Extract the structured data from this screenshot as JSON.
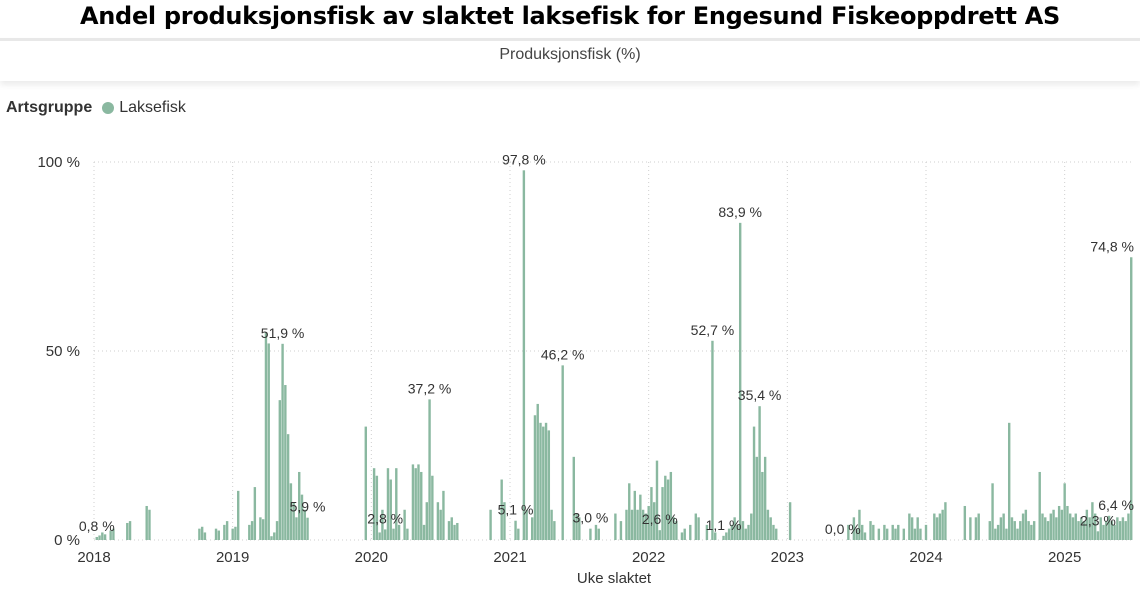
{
  "title": "Andel produksjonsfisk av slaktet laksefisk for Engesund Fiskeoppdrett AS",
  "subtitle": "Produksjonsfisk (%)",
  "legend": {
    "title": "Artsgruppe",
    "item": "Laksefisk"
  },
  "colors": {
    "bar": "#8ab8a0",
    "legend_dot": "#8ab8a0",
    "grid": "#cfcfcf"
  },
  "chart_data": {
    "type": "bar",
    "title": "Produksjonsfisk (%)",
    "xlabel": "Uke slaktet",
    "ylabel": "",
    "ylim": [
      0,
      100
    ],
    "y_ticks": [
      0,
      50,
      100
    ],
    "y_tick_labels": [
      "0 %",
      "50 %",
      "100 %"
    ],
    "x_range": [
      2018,
      2025.5
    ],
    "x_ticks": [
      2018,
      2019,
      2020,
      2021,
      2022,
      2023,
      2024,
      2025
    ],
    "x_tick_labels": [
      "2018",
      "2019",
      "2020",
      "2021",
      "2022",
      "2023",
      "2024",
      "2025"
    ],
    "series": [
      {
        "name": "Laksefisk",
        "points": [
          {
            "x": 2018.02,
            "y": 0.8
          },
          {
            "x": 2018.04,
            "y": 1.2
          },
          {
            "x": 2018.06,
            "y": 2.0
          },
          {
            "x": 2018.08,
            "y": 1.5
          },
          {
            "x": 2018.12,
            "y": 2.5
          },
          {
            "x": 2018.14,
            "y": 3.0
          },
          {
            "x": 2018.24,
            "y": 4.5
          },
          {
            "x": 2018.26,
            "y": 5.0
          },
          {
            "x": 2018.38,
            "y": 9.0
          },
          {
            "x": 2018.4,
            "y": 8.0
          },
          {
            "x": 2018.76,
            "y": 3.0
          },
          {
            "x": 2018.78,
            "y": 3.5
          },
          {
            "x": 2018.8,
            "y": 2.0
          },
          {
            "x": 2018.88,
            "y": 3.0
          },
          {
            "x": 2018.9,
            "y": 2.5
          },
          {
            "x": 2018.94,
            "y": 4.0
          },
          {
            "x": 2018.96,
            "y": 5.0
          },
          {
            "x": 2019.0,
            "y": 3.0
          },
          {
            "x": 2019.02,
            "y": 3.5
          },
          {
            "x": 2019.04,
            "y": 13.0
          },
          {
            "x": 2019.12,
            "y": 4.0
          },
          {
            "x": 2019.14,
            "y": 5.0
          },
          {
            "x": 2019.16,
            "y": 14.0
          },
          {
            "x": 2019.2,
            "y": 6.0
          },
          {
            "x": 2019.22,
            "y": 5.5
          },
          {
            "x": 2019.24,
            "y": 55.0
          },
          {
            "x": 2019.26,
            "y": 52.0
          },
          {
            "x": 2019.28,
            "y": 1.0
          },
          {
            "x": 2019.3,
            "y": 2.0
          },
          {
            "x": 2019.32,
            "y": 5.0
          },
          {
            "x": 2019.34,
            "y": 37.0
          },
          {
            "x": 2019.36,
            "y": 51.9
          },
          {
            "x": 2019.38,
            "y": 41.0
          },
          {
            "x": 2019.4,
            "y": 28.0
          },
          {
            "x": 2019.42,
            "y": 15.0
          },
          {
            "x": 2019.44,
            "y": 10.0
          },
          {
            "x": 2019.46,
            "y": 6.0
          },
          {
            "x": 2019.48,
            "y": 18.0
          },
          {
            "x": 2019.5,
            "y": 12.0
          },
          {
            "x": 2019.52,
            "y": 8.0
          },
          {
            "x": 2019.54,
            "y": 5.9
          },
          {
            "x": 2019.96,
            "y": 30.0
          },
          {
            "x": 2020.02,
            "y": 19.0
          },
          {
            "x": 2020.04,
            "y": 17.0
          },
          {
            "x": 2020.06,
            "y": 2.0
          },
          {
            "x": 2020.08,
            "y": 8.0
          },
          {
            "x": 2020.1,
            "y": 2.8
          },
          {
            "x": 2020.12,
            "y": 19.0
          },
          {
            "x": 2020.14,
            "y": 16.0
          },
          {
            "x": 2020.16,
            "y": 3.0
          },
          {
            "x": 2020.18,
            "y": 19.0
          },
          {
            "x": 2020.2,
            "y": 4.0
          },
          {
            "x": 2020.24,
            "y": 8.0
          },
          {
            "x": 2020.26,
            "y": 3.0
          },
          {
            "x": 2020.3,
            "y": 20.0
          },
          {
            "x": 2020.32,
            "y": 19.0
          },
          {
            "x": 2020.34,
            "y": 20.0
          },
          {
            "x": 2020.36,
            "y": 18.0
          },
          {
            "x": 2020.38,
            "y": 4.0
          },
          {
            "x": 2020.4,
            "y": 10.0
          },
          {
            "x": 2020.42,
            "y": 37.2
          },
          {
            "x": 2020.44,
            "y": 17.0
          },
          {
            "x": 2020.48,
            "y": 10.0
          },
          {
            "x": 2020.5,
            "y": 8.0
          },
          {
            "x": 2020.52,
            "y": 13.0
          },
          {
            "x": 2020.56,
            "y": 5.0
          },
          {
            "x": 2020.58,
            "y": 6.0
          },
          {
            "x": 2020.6,
            "y": 4.0
          },
          {
            "x": 2020.62,
            "y": 4.5
          },
          {
            "x": 2020.86,
            "y": 8.0
          },
          {
            "x": 2020.94,
            "y": 16.0
          },
          {
            "x": 2020.96,
            "y": 10.0
          },
          {
            "x": 2021.04,
            "y": 5.1
          },
          {
            "x": 2021.06,
            "y": 3.0
          },
          {
            "x": 2021.1,
            "y": 97.8
          },
          {
            "x": 2021.12,
            "y": 8.0
          },
          {
            "x": 2021.16,
            "y": 6.0
          },
          {
            "x": 2021.18,
            "y": 33.0
          },
          {
            "x": 2021.2,
            "y": 36.0
          },
          {
            "x": 2021.22,
            "y": 31.0
          },
          {
            "x": 2021.24,
            "y": 30.0
          },
          {
            "x": 2021.26,
            "y": 31.0
          },
          {
            "x": 2021.28,
            "y": 29.0
          },
          {
            "x": 2021.3,
            "y": 8.0
          },
          {
            "x": 2021.32,
            "y": 5.0
          },
          {
            "x": 2021.38,
            "y": 46.2
          },
          {
            "x": 2021.46,
            "y": 22.0
          },
          {
            "x": 2021.48,
            "y": 7.0
          },
          {
            "x": 2021.5,
            "y": 6.0
          },
          {
            "x": 2021.58,
            "y": 3.0
          },
          {
            "x": 2021.62,
            "y": 4.0
          },
          {
            "x": 2021.64,
            "y": 3.0
          },
          {
            "x": 2021.76,
            "y": 7.0
          },
          {
            "x": 2021.8,
            "y": 5.0
          },
          {
            "x": 2021.84,
            "y": 8.0
          },
          {
            "x": 2021.86,
            "y": 15.0
          },
          {
            "x": 2021.88,
            "y": 8.0
          },
          {
            "x": 2021.9,
            "y": 13.0
          },
          {
            "x": 2021.92,
            "y": 8.0
          },
          {
            "x": 2021.94,
            "y": 12.0
          },
          {
            "x": 2021.96,
            "y": 8.0
          },
          {
            "x": 2021.98,
            "y": 7.0
          },
          {
            "x": 2022.0,
            "y": 9.0
          },
          {
            "x": 2022.02,
            "y": 14.0
          },
          {
            "x": 2022.04,
            "y": 10.0
          },
          {
            "x": 2022.06,
            "y": 21.0
          },
          {
            "x": 2022.08,
            "y": 2.6
          },
          {
            "x": 2022.1,
            "y": 14.0
          },
          {
            "x": 2022.12,
            "y": 17.0
          },
          {
            "x": 2022.14,
            "y": 16.0
          },
          {
            "x": 2022.16,
            "y": 18.0
          },
          {
            "x": 2022.18,
            "y": 6.0
          },
          {
            "x": 2022.2,
            "y": 5.0
          },
          {
            "x": 2022.24,
            "y": 2.0
          },
          {
            "x": 2022.26,
            "y": 3.0
          },
          {
            "x": 2022.3,
            "y": 4.0
          },
          {
            "x": 2022.34,
            "y": 7.0
          },
          {
            "x": 2022.36,
            "y": 6.0
          },
          {
            "x": 2022.42,
            "y": 4.0
          },
          {
            "x": 2022.46,
            "y": 52.7
          },
          {
            "x": 2022.48,
            "y": 2.0
          },
          {
            "x": 2022.54,
            "y": 1.1
          },
          {
            "x": 2022.56,
            "y": 2.0
          },
          {
            "x": 2022.58,
            "y": 3.0
          },
          {
            "x": 2022.6,
            "y": 4.0
          },
          {
            "x": 2022.62,
            "y": 6.0
          },
          {
            "x": 2022.64,
            "y": 4.0
          },
          {
            "x": 2022.66,
            "y": 83.9
          },
          {
            "x": 2022.68,
            "y": 5.0
          },
          {
            "x": 2022.7,
            "y": 3.0
          },
          {
            "x": 2022.72,
            "y": 4.0
          },
          {
            "x": 2022.74,
            "y": 7.0
          },
          {
            "x": 2022.76,
            "y": 30.0
          },
          {
            "x": 2022.78,
            "y": 22.0
          },
          {
            "x": 2022.8,
            "y": 35.4
          },
          {
            "x": 2022.82,
            "y": 18.0
          },
          {
            "x": 2022.84,
            "y": 22.0
          },
          {
            "x": 2022.86,
            "y": 8.0
          },
          {
            "x": 2022.88,
            "y": 6.0
          },
          {
            "x": 2022.9,
            "y": 4.0
          },
          {
            "x": 2022.92,
            "y": 3.0
          },
          {
            "x": 2023.02,
            "y": 10.0
          },
          {
            "x": 2023.4,
            "y": 0.0
          },
          {
            "x": 2023.44,
            "y": 4.0
          },
          {
            "x": 2023.48,
            "y": 6.0
          },
          {
            "x": 2023.5,
            "y": 3.0
          },
          {
            "x": 2023.52,
            "y": 8.0
          },
          {
            "x": 2023.54,
            "y": 4.0
          },
          {
            "x": 2023.56,
            "y": 2.0
          },
          {
            "x": 2023.6,
            "y": 5.0
          },
          {
            "x": 2023.62,
            "y": 4.0
          },
          {
            "x": 2023.66,
            "y": 3.0
          },
          {
            "x": 2023.7,
            "y": 4.0
          },
          {
            "x": 2023.72,
            "y": 3.0
          },
          {
            "x": 2023.76,
            "y": 4.0
          },
          {
            "x": 2023.78,
            "y": 3.0
          },
          {
            "x": 2023.8,
            "y": 4.0
          },
          {
            "x": 2023.84,
            "y": 3.0
          },
          {
            "x": 2023.88,
            "y": 7.0
          },
          {
            "x": 2023.9,
            "y": 6.0
          },
          {
            "x": 2023.92,
            "y": 3.0
          },
          {
            "x": 2023.94,
            "y": 6.0
          },
          {
            "x": 2023.96,
            "y": 3.0
          },
          {
            "x": 2024.0,
            "y": 4.0
          },
          {
            "x": 2024.06,
            "y": 7.0
          },
          {
            "x": 2024.08,
            "y": 6.0
          },
          {
            "x": 2024.1,
            "y": 7.0
          },
          {
            "x": 2024.12,
            "y": 8.0
          },
          {
            "x": 2024.14,
            "y": 10.0
          },
          {
            "x": 2024.28,
            "y": 9.0
          },
          {
            "x": 2024.32,
            "y": 6.0
          },
          {
            "x": 2024.36,
            "y": 6.0
          },
          {
            "x": 2024.38,
            "y": 7.0
          },
          {
            "x": 2024.46,
            "y": 5.0
          },
          {
            "x": 2024.48,
            "y": 15.0
          },
          {
            "x": 2024.5,
            "y": 3.0
          },
          {
            "x": 2024.52,
            "y": 4.0
          },
          {
            "x": 2024.54,
            "y": 6.0
          },
          {
            "x": 2024.56,
            "y": 7.0
          },
          {
            "x": 2024.58,
            "y": 3.0
          },
          {
            "x": 2024.6,
            "y": 31.0
          },
          {
            "x": 2024.62,
            "y": 6.0
          },
          {
            "x": 2024.64,
            "y": 5.0
          },
          {
            "x": 2024.66,
            "y": 3.0
          },
          {
            "x": 2024.68,
            "y": 5.0
          },
          {
            "x": 2024.7,
            "y": 7.0
          },
          {
            "x": 2024.72,
            "y": 8.0
          },
          {
            "x": 2024.74,
            "y": 5.0
          },
          {
            "x": 2024.76,
            "y": 4.0
          },
          {
            "x": 2024.78,
            "y": 5.0
          },
          {
            "x": 2024.82,
            "y": 18.0
          },
          {
            "x": 2024.84,
            "y": 7.0
          },
          {
            "x": 2024.86,
            "y": 6.0
          },
          {
            "x": 2024.88,
            "y": 5.0
          },
          {
            "x": 2024.9,
            "y": 7.0
          },
          {
            "x": 2024.92,
            "y": 8.0
          },
          {
            "x": 2024.94,
            "y": 6.0
          },
          {
            "x": 2024.96,
            "y": 9.0
          },
          {
            "x": 2024.98,
            "y": 8.0
          },
          {
            "x": 2025.0,
            "y": 15.0
          },
          {
            "x": 2025.02,
            "y": 9.0
          },
          {
            "x": 2025.04,
            "y": 7.0
          },
          {
            "x": 2025.06,
            "y": 6.0
          },
          {
            "x": 2025.08,
            "y": 7.0
          },
          {
            "x": 2025.1,
            "y": 5.0
          },
          {
            "x": 2025.12,
            "y": 6.0
          },
          {
            "x": 2025.14,
            "y": 5.0
          },
          {
            "x": 2025.16,
            "y": 8.0
          },
          {
            "x": 2025.18,
            "y": 6.0
          },
          {
            "x": 2025.2,
            "y": 10.0
          },
          {
            "x": 2025.22,
            "y": 7.0
          },
          {
            "x": 2025.24,
            "y": 2.3
          },
          {
            "x": 2025.26,
            "y": 6.0
          },
          {
            "x": 2025.28,
            "y": 4.0
          },
          {
            "x": 2025.3,
            "y": 5.0
          },
          {
            "x": 2025.32,
            "y": 6.4
          },
          {
            "x": 2025.34,
            "y": 5.0
          },
          {
            "x": 2025.36,
            "y": 4.0
          },
          {
            "x": 2025.38,
            "y": 6.0
          },
          {
            "x": 2025.4,
            "y": 5.0
          },
          {
            "x": 2025.42,
            "y": 6.0
          },
          {
            "x": 2025.44,
            "y": 5.0
          },
          {
            "x": 2025.46,
            "y": 7.0
          },
          {
            "x": 2025.48,
            "y": 74.8
          }
        ]
      }
    ],
    "annotations": [
      {
        "x": 2018.02,
        "y": 0.8,
        "label": "0,8 %"
      },
      {
        "x": 2019.36,
        "y": 51.9,
        "label": "51,9 %"
      },
      {
        "x": 2019.54,
        "y": 5.9,
        "label": "5,9 %"
      },
      {
        "x": 2020.1,
        "y": 2.8,
        "label": "2,8 %"
      },
      {
        "x": 2020.42,
        "y": 37.2,
        "label": "37,2 %"
      },
      {
        "x": 2021.04,
        "y": 5.1,
        "label": "5,1 %"
      },
      {
        "x": 2021.1,
        "y": 97.8,
        "label": "97,8 %"
      },
      {
        "x": 2021.38,
        "y": 46.2,
        "label": "46,2 %"
      },
      {
        "x": 2021.58,
        "y": 3.0,
        "label": "3,0 %"
      },
      {
        "x": 2022.08,
        "y": 2.6,
        "label": "2,6 %"
      },
      {
        "x": 2022.46,
        "y": 52.7,
        "label": "52,7 %"
      },
      {
        "x": 2022.54,
        "y": 1.1,
        "label": "1,1 %"
      },
      {
        "x": 2022.66,
        "y": 83.9,
        "label": "83,9 %"
      },
      {
        "x": 2022.8,
        "y": 35.4,
        "label": "35,4 %"
      },
      {
        "x": 2023.4,
        "y": 0.0,
        "label": "0,0 %"
      },
      {
        "x": 2025.24,
        "y": 2.3,
        "label": "2,3 %"
      },
      {
        "x": 2025.32,
        "y": 6.4,
        "label": "6,4 %"
      },
      {
        "x": 2025.48,
        "y": 74.8,
        "label": "74,8 %"
      }
    ]
  }
}
